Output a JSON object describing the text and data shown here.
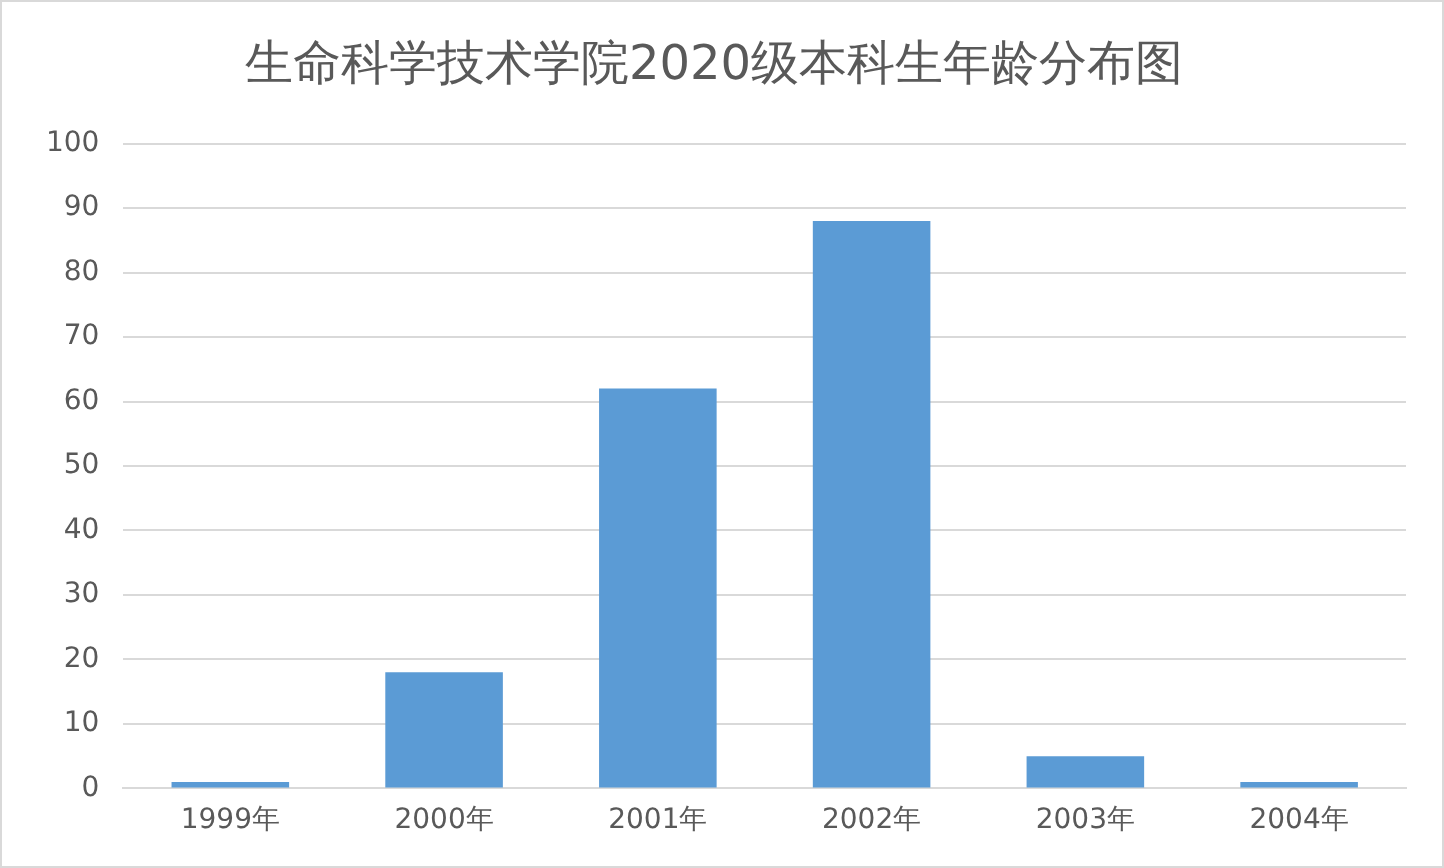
{
  "chart_data": {
    "type": "bar",
    "title": "生命科学技术学院2020级本科生年龄分布图",
    "categories": [
      "1999年",
      "2000年",
      "2001年",
      "2002年",
      "2003年",
      "2004年"
    ],
    "values": [
      1,
      18,
      62,
      88,
      5,
      1
    ],
    "color": "#5b9bd5",
    "ylim": [
      0,
      100
    ],
    "yticks": [
      0,
      10,
      20,
      30,
      40,
      50,
      60,
      70,
      80,
      90,
      100
    ],
    "grid": "y"
  }
}
